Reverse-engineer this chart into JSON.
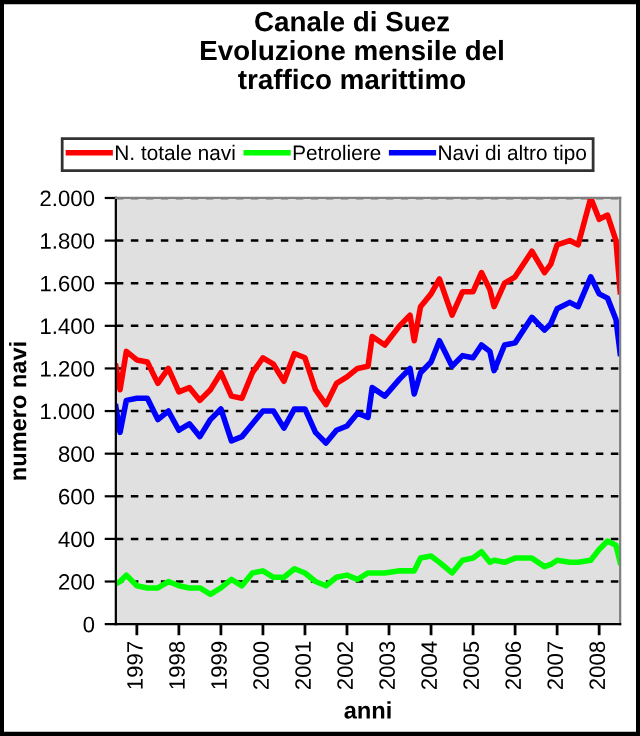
{
  "chart_data": {
    "type": "line",
    "title": "Canale di Suez\nEvoluzione mensile del\ntraffico marittimo",
    "xlabel": "anni",
    "ylabel": "numero navi",
    "x": [
      1997.0,
      1997.1,
      1997.25,
      1997.5,
      1997.75,
      1998.0,
      1998.25,
      1998.5,
      1998.75,
      1999.0,
      1999.25,
      1999.5,
      1999.75,
      2000.0,
      2000.25,
      2000.5,
      2000.75,
      2001.0,
      2001.25,
      2001.5,
      2001.75,
      2002.0,
      2002.25,
      2002.5,
      2002.75,
      2003.0,
      2003.1,
      2003.4,
      2003.75,
      2004.0,
      2004.1,
      2004.25,
      2004.5,
      2004.7,
      2005.0,
      2005.25,
      2005.5,
      2005.7,
      2005.9,
      2006.0,
      2006.25,
      2006.5,
      2006.9,
      2007.2,
      2007.35,
      2007.5,
      2007.8,
      2008.0,
      2008.3,
      2008.5,
      2008.7,
      2008.9,
      2009.0
    ],
    "series": [
      {
        "name": "N. totale navi",
        "color": "#ff0000",
        "values": [
          1210,
          1100,
          1280,
          1240,
          1230,
          1130,
          1200,
          1090,
          1110,
          1050,
          1100,
          1180,
          1070,
          1060,
          1180,
          1250,
          1220,
          1140,
          1270,
          1250,
          1100,
          1030,
          1130,
          1160,
          1200,
          1210,
          1350,
          1310,
          1400,
          1450,
          1330,
          1490,
          1550,
          1620,
          1450,
          1560,
          1560,
          1650,
          1570,
          1490,
          1600,
          1630,
          1750,
          1650,
          1690,
          1780,
          1800,
          1780,
          2000,
          1900,
          1920,
          1800,
          1560
        ]
      },
      {
        "name": "Petroliere",
        "color": "#00ff00",
        "values": [
          190,
          200,
          230,
          180,
          170,
          170,
          200,
          180,
          170,
          170,
          140,
          170,
          210,
          180,
          240,
          250,
          220,
          220,
          260,
          240,
          200,
          180,
          220,
          230,
          210,
          240,
          240,
          240,
          250,
          250,
          250,
          310,
          320,
          290,
          240,
          300,
          310,
          340,
          290,
          300,
          290,
          310,
          310,
          270,
          280,
          300,
          290,
          290,
          300,
          350,
          390,
          370,
          290
        ]
      },
      {
        "name": "Navi di altro tipo",
        "color": "#0000ff",
        "values": [
          1020,
          900,
          1050,
          1060,
          1060,
          960,
          1000,
          910,
          940,
          880,
          960,
          1010,
          860,
          880,
          940,
          1000,
          1000,
          920,
          1010,
          1010,
          900,
          850,
          910,
          930,
          990,
          970,
          1110,
          1070,
          1150,
          1200,
          1080,
          1180,
          1230,
          1330,
          1210,
          1260,
          1250,
          1310,
          1280,
          1190,
          1310,
          1320,
          1440,
          1380,
          1410,
          1480,
          1510,
          1490,
          1630,
          1550,
          1530,
          1430,
          1270
        ]
      }
    ],
    "xlim": [
      1997.0,
      2009.0
    ],
    "xticks": [
      {
        "value": 1997.5,
        "label": "1997"
      },
      {
        "value": 1998.5,
        "label": "1998"
      },
      {
        "value": 1999.5,
        "label": "1999"
      },
      {
        "value": 2000.5,
        "label": "2000"
      },
      {
        "value": 2001.5,
        "label": "2001"
      },
      {
        "value": 2002.5,
        "label": "2002"
      },
      {
        "value": 2003.5,
        "label": "2003"
      },
      {
        "value": 2004.5,
        "label": "2004"
      },
      {
        "value": 2005.5,
        "label": "2005"
      },
      {
        "value": 2006.5,
        "label": "2006"
      },
      {
        "value": 2007.5,
        "label": "2007"
      },
      {
        "value": 2008.5,
        "label": "2008"
      }
    ],
    "ylim": [
      0,
      2000
    ],
    "yticks": [
      0,
      {
        "value": 200,
        "label": "200"
      },
      {
        "value": 400,
        "label": "400"
      },
      {
        "value": 600,
        "label": "600"
      },
      {
        "value": 800,
        "label": "800"
      },
      {
        "value": 1000,
        "label": "1.000"
      },
      {
        "value": 1200,
        "label": "1.200"
      },
      {
        "value": 1400,
        "label": "1.400"
      },
      {
        "value": 1600,
        "label": "1.600"
      },
      {
        "value": 1800,
        "label": "1.800"
      },
      {
        "value": 2000,
        "label": "2.000"
      }
    ],
    "grid": "y",
    "legend": "top",
    "line_style": "solid",
    "marker": "none"
  }
}
